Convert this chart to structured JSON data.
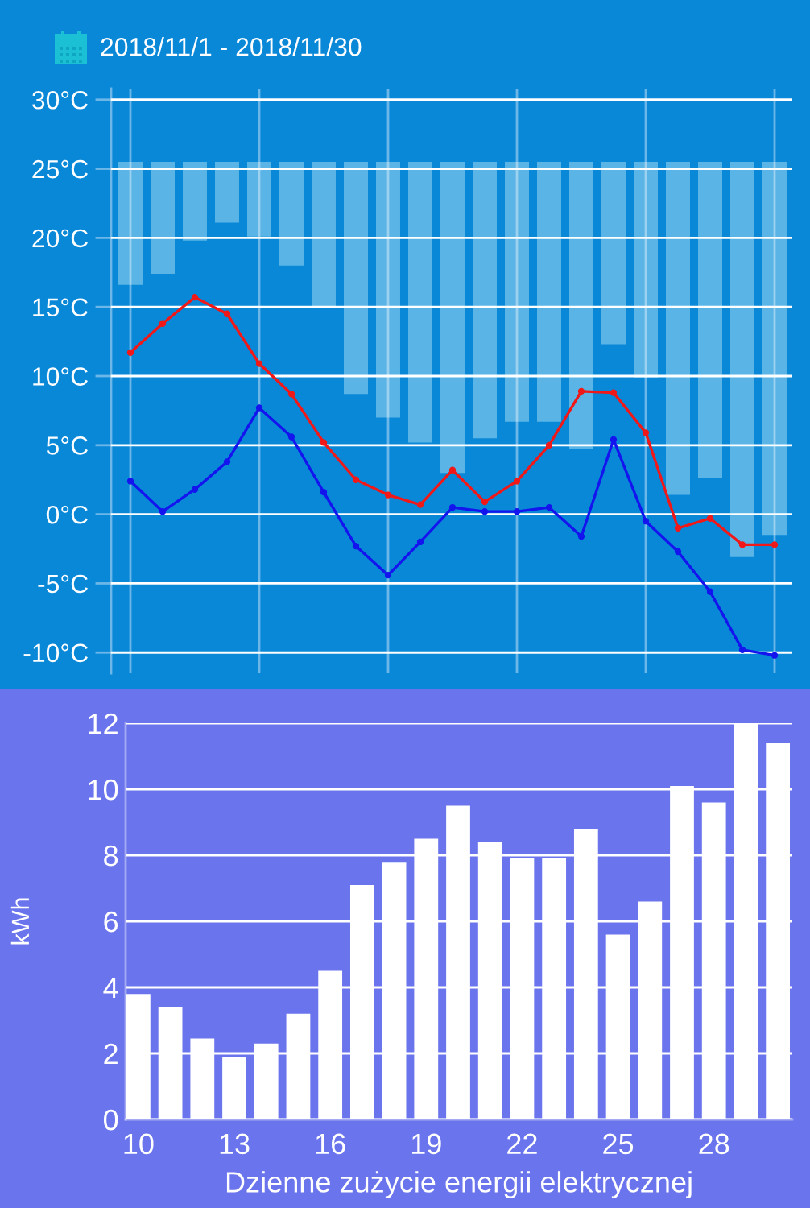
{
  "chart_data": [
    {
      "type": "line",
      "title": "2018/11/1 - 2018/11/30",
      "categories": [
        null,
        null,
        null,
        null,
        null,
        null,
        null,
        null,
        null,
        null,
        null,
        null,
        null,
        null,
        null,
        null,
        null,
        null,
        null,
        null,
        null
      ],
      "series": [
        {
          "type": "bar",
          "color": "#5ab4e6",
          "base": [
            25.5,
            25.5,
            25.5,
            25.5,
            25.5,
            25.5,
            25.5,
            25.5,
            25.5,
            25.5,
            25.5,
            25.5,
            25.5,
            25.5,
            25.5,
            25.5,
            25.5,
            25.5,
            25.5,
            25.5,
            25.5
          ],
          "values": [
            -8.9,
            -8.1,
            -5.7,
            -4.4,
            -5.4,
            -7.5,
            -10.6,
            -16.8,
            -18.5,
            -20.3,
            -22.5,
            -20.0,
            -18.8,
            -18.8,
            -20.8,
            -13.2,
            -15.6,
            -24.1,
            -22.9,
            -28.6,
            -27.0
          ]
        },
        {
          "color": "#f01818",
          "values": [
            11.7,
            13.8,
            15.7,
            14.5,
            10.9,
            8.7,
            5.2,
            2.5,
            1.4,
            0.7,
            3.2,
            0.9,
            2.4,
            5.0,
            8.9,
            8.8,
            5.9,
            -1.0,
            -0.3,
            -2.2,
            -2.2
          ]
        },
        {
          "color": "#1414ee",
          "values": [
            2.4,
            0.2,
            1.8,
            3.8,
            7.7,
            5.6,
            1.6,
            -2.3,
            -4.4,
            -2.0,
            0.5,
            0.2,
            0.2,
            0.5,
            -1.6,
            5.4,
            -0.5,
            -2.7,
            -5.6,
            -9.8,
            -10.2
          ]
        }
      ],
      "ylim": [
        -11.5,
        30.8
      ],
      "yticks": [
        {
          "value": -10,
          "label": "-10°C"
        },
        {
          "value": -5,
          "label": "-5°C"
        },
        {
          "value": 0,
          "label": "0°C"
        },
        {
          "value": 5,
          "label": "5°C"
        },
        {
          "value": 10,
          "label": "10°C"
        },
        {
          "value": 15,
          "label": "15°C"
        },
        {
          "value": 20,
          "label": "20°C"
        },
        {
          "value": 25,
          "label": "25°C"
        },
        {
          "value": 30,
          "label": "30°C"
        }
      ],
      "grid": true,
      "marker": "circle",
      "line_style": "solid",
      "tick_labels": "y"
    },
    {
      "type": "bar",
      "x": [
        10,
        11,
        12,
        13,
        14,
        15,
        16,
        17,
        18,
        19,
        20,
        21,
        22,
        23,
        24,
        25,
        26,
        27,
        28,
        29,
        30
      ],
      "values": [
        3.8,
        3.4,
        2.45,
        1.9,
        2.3,
        3.2,
        4.5,
        7.1,
        7.8,
        8.5,
        9.5,
        8.4,
        7.9,
        7.9,
        8.8,
        5.6,
        6.6,
        10.1,
        9.6,
        12.0,
        11.4
      ],
      "color": "#ffffff",
      "xlim": [
        9.6,
        30.45
      ],
      "xticks": [
        10,
        13,
        16,
        19,
        22,
        25,
        28
      ],
      "ylim": [
        0,
        12
      ],
      "yticks": [
        0,
        2,
        4,
        6,
        8,
        10,
        12
      ],
      "xlabel": "Dzienne zużycie energii elektrycznej",
      "ylabel": "kWh",
      "grid": "y"
    }
  ]
}
